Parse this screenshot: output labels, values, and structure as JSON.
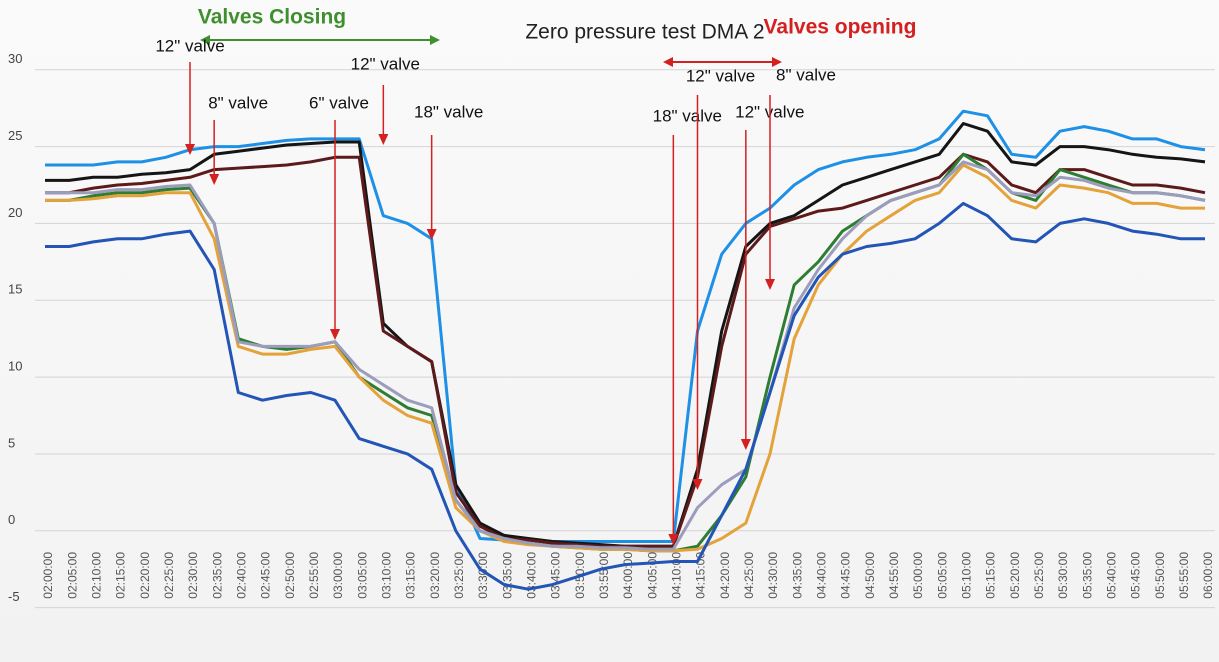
{
  "chart_data": {
    "type": "line",
    "title": "Zero pressure test DMA 2",
    "closing_label": "Valves Closing",
    "opening_label": "Valves opening",
    "annotations": [
      {
        "text": "12\" valve",
        "x": "02:30:00"
      },
      {
        "text": "8\" valve",
        "x": "02:35:00"
      },
      {
        "text": "6\" valve",
        "x": "03:00:00"
      },
      {
        "text": "12\" valve",
        "x": "03:10:00"
      },
      {
        "text": "18\" valve",
        "x": "03:20:00"
      },
      {
        "text": "18\" valve",
        "x": "04:10:00"
      },
      {
        "text": "12\" valve",
        "x": "04:15:00"
      },
      {
        "text": "12\" valve",
        "x": "04:25:00"
      },
      {
        "text": "8\" valve",
        "x": "04:30:00"
      }
    ],
    "categories": [
      "02:00:00",
      "02:05:00",
      "02:10:00",
      "02:15:00",
      "02:20:00",
      "02:25:00",
      "02:30:00",
      "02:35:00",
      "02:40:00",
      "02:45:00",
      "02:50:00",
      "02:55:00",
      "03:00:00",
      "03:05:00",
      "03:10:00",
      "03:15:00",
      "03:20:00",
      "03:25:00",
      "03:30:00",
      "03:35:00",
      "03:40:00",
      "03:45:00",
      "03:50:00",
      "03:55:00",
      "04:00:00",
      "04:05:00",
      "04:10:00",
      "04:15:00",
      "04:20:00",
      "04:25:00",
      "04:30:00",
      "04:35:00",
      "04:40:00",
      "04:45:00",
      "04:50:00",
      "04:55:00",
      "05:00:00",
      "05:05:00",
      "05:10:00",
      "05:15:00",
      "05:20:00",
      "05:25:00",
      "05:30:00",
      "05:35:00",
      "05:40:00",
      "05:45:00",
      "05:50:00",
      "05:55:00",
      "06:00:00"
    ],
    "series": [
      {
        "color": "#1e90e6",
        "values": [
          23.8,
          23.8,
          23.8,
          24,
          24,
          24.3,
          24.8,
          25,
          25,
          25.2,
          25.4,
          25.5,
          25.5,
          25.5,
          20.5,
          20,
          19,
          3,
          -0.5,
          -0.6,
          -0.6,
          -0.7,
          -0.7,
          -0.7,
          -0.7,
          -0.7,
          -0.7,
          13,
          18,
          20,
          21,
          22.5,
          23.5,
          24,
          24.3,
          24.5,
          24.8,
          25.5,
          27.3,
          27,
          24.5,
          24.3,
          26,
          26.3,
          26,
          25.5,
          25.5,
          25,
          24.8
        ]
      },
      {
        "color": "#151515",
        "values": [
          22.8,
          22.8,
          23,
          23,
          23.2,
          23.3,
          23.5,
          24.5,
          24.7,
          24.9,
          25.1,
          25.2,
          25.3,
          25.3,
          13.5,
          12,
          11,
          3,
          0.5,
          -0.3,
          -0.5,
          -0.7,
          -0.8,
          -0.9,
          -1,
          -1,
          -1,
          4,
          13,
          18.5,
          20,
          20.5,
          21.5,
          22.5,
          23,
          23.5,
          24,
          24.5,
          26.5,
          26,
          24,
          23.8,
          25,
          25,
          24.8,
          24.5,
          24.3,
          24.2,
          24
        ]
      },
      {
        "color": "#5c1a1a",
        "values": [
          22,
          22,
          22.3,
          22.5,
          22.6,
          22.8,
          23,
          23.5,
          23.6,
          23.7,
          23.8,
          24,
          24.3,
          24.3,
          13,
          12,
          11,
          2.5,
          0.3,
          -0.5,
          -0.6,
          -0.8,
          -0.9,
          -1,
          -1,
          -1,
          -1,
          3.5,
          12,
          18,
          19.8,
          20.3,
          20.8,
          21,
          21.5,
          22,
          22.5,
          23,
          24.5,
          24,
          22.5,
          22,
          23.5,
          23.5,
          23,
          22.5,
          22.5,
          22.3,
          22
        ]
      },
      {
        "color": "#2e7d32",
        "values": [
          21.5,
          21.5,
          21.8,
          22,
          22,
          22.2,
          22.3,
          20,
          12.5,
          12,
          11.8,
          12,
          12.3,
          10,
          9,
          8,
          7.5,
          2,
          0,
          -0.5,
          -0.8,
          -1,
          -1.1,
          -1.2,
          -1.2,
          -1.3,
          -1.3,
          -1,
          1,
          3.5,
          10,
          16,
          17.5,
          19.5,
          20.5,
          21.5,
          22,
          22.5,
          24.5,
          23.5,
          22,
          21.5,
          23.5,
          23,
          22.5,
          22,
          22,
          21.8,
          21.5
        ]
      },
      {
        "color": "#e3a23a",
        "values": [
          21.5,
          21.5,
          21.6,
          21.8,
          21.8,
          22,
          22,
          19,
          12,
          11.5,
          11.5,
          11.8,
          12,
          10,
          8.5,
          7.5,
          7,
          1.5,
          0,
          -0.7,
          -0.9,
          -1,
          -1.1,
          -1.2,
          -1.2,
          -1.3,
          -1.3,
          -1.2,
          -0.5,
          0.5,
          5,
          12.5,
          16,
          18,
          19.5,
          20.5,
          21.5,
          22,
          23.8,
          23,
          21.5,
          21,
          22.5,
          22.3,
          22,
          21.3,
          21.3,
          21,
          21
        ]
      },
      {
        "color": "#9c9cbc",
        "values": [
          22,
          22,
          22,
          22.2,
          22.2,
          22.4,
          22.5,
          20,
          12.3,
          12,
          12,
          12,
          12.3,
          10.5,
          9.5,
          8.5,
          8,
          2,
          0,
          -0.5,
          -0.8,
          -1,
          -1,
          -1.1,
          -1.1,
          -1.2,
          -1.2,
          1.5,
          3,
          4,
          9,
          14.5,
          17,
          19,
          20.5,
          21.5,
          22,
          22.5,
          24,
          23.5,
          22,
          21.8,
          23,
          22.8,
          22.3,
          22,
          22,
          21.8,
          21.5
        ]
      },
      {
        "color": "#2255b5",
        "values": [
          18.5,
          18.5,
          18.8,
          19,
          19,
          19.3,
          19.5,
          17,
          9,
          8.5,
          8.8,
          9,
          8.5,
          6,
          5.5,
          5,
          4,
          0,
          -2.5,
          -3.5,
          -3.8,
          -3.5,
          -3,
          -2.5,
          -2.2,
          -2.1,
          -2,
          -2,
          1,
          4,
          9,
          14,
          16.5,
          18,
          18.5,
          18.7,
          19,
          20,
          21.3,
          20.5,
          19,
          18.8,
          20,
          20.3,
          20,
          19.5,
          19.3,
          19,
          19
        ]
      }
    ],
    "ylim": [
      -6,
      32
    ],
    "yticks": [
      -5,
      0,
      5,
      10,
      15,
      20,
      25,
      30
    ],
    "grid": true
  }
}
